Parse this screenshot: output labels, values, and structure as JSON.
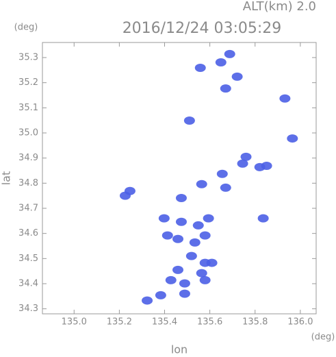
{
  "chart_data": {
    "type": "scatter",
    "title": "2016/12/24 03:05:29",
    "annotation": "ALT(km) 2.0",
    "x_unit": "(deg)",
    "y_unit": "(deg)",
    "x_label": "lon",
    "y_label": "lat",
    "color": "#4b5fe6",
    "x": [
      135.558,
      135.649,
      135.688,
      135.721,
      135.67,
      135.932,
      135.51,
      135.965,
      135.76,
      135.821,
      135.851,
      135.745,
      135.655,
      135.67,
      135.564,
      135.247,
      135.226,
      135.836,
      135.474,
      135.398,
      135.474,
      135.549,
      135.594,
      135.413,
      135.459,
      135.534,
      135.579,
      135.519,
      135.579,
      135.459,
      135.564,
      135.609,
      135.489,
      135.428,
      135.579,
      135.383,
      135.323,
      135.489
    ],
    "y": [
      35.259,
      35.281,
      35.314,
      35.224,
      35.177,
      35.137,
      35.049,
      34.978,
      34.905,
      34.864,
      34.869,
      34.878,
      34.837,
      34.782,
      34.796,
      34.769,
      34.75,
      34.66,
      34.741,
      34.66,
      34.646,
      34.632,
      34.66,
      34.592,
      34.578,
      34.564,
      34.592,
      34.51,
      34.483,
      34.455,
      34.442,
      34.483,
      34.401,
      34.414,
      34.414,
      34.354,
      34.333,
      34.36
    ],
    "xlim": [
      134.86,
      136.07
    ],
    "ylim": [
      34.28,
      35.36
    ],
    "xticks": [
      {
        "value": 135.0,
        "label": "135.0"
      },
      135.2,
      135.4,
      135.6,
      135.8,
      {
        "value": 136.0,
        "label": "136.0"
      }
    ],
    "yticks": [
      34.3,
      34.4,
      34.5,
      34.6,
      34.7,
      34.8,
      34.9,
      {
        "value": 35.0,
        "label": "35.0"
      },
      35.1,
      35.2,
      35.3
    ]
  }
}
